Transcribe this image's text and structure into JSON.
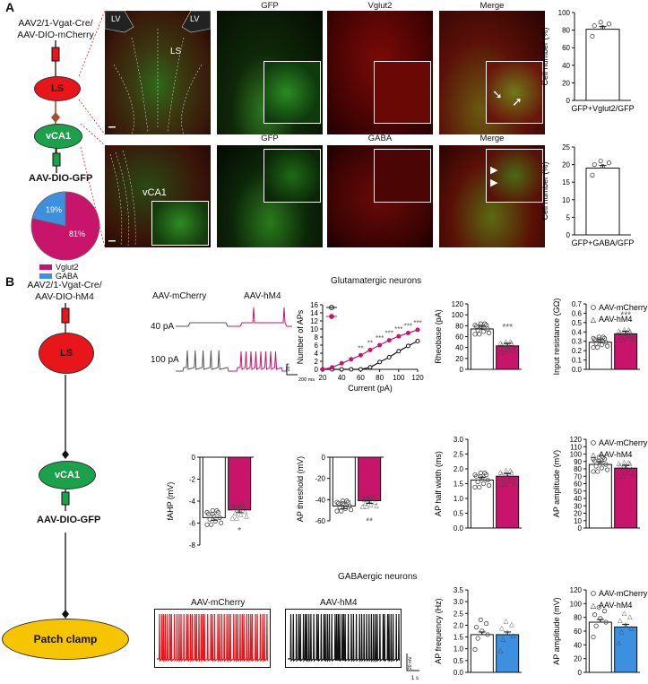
{
  "panel_a": {
    "letter": "A",
    "scheme": {
      "title_line1": "AAV2/1-Vgat-Cre/",
      "title_line2": "AAV-DIO-mCherry",
      "ls": "LS",
      "vca1": "vCA1",
      "vector": "AAV-DIO-GFP",
      "pie_vglut2_pct": "81%",
      "pie_gaba_pct": "19%",
      "legend_vglut2": "Vglut2",
      "legend_gaba": "GABA"
    },
    "micro_row1": {
      "labels": [
        "GFP",
        "Vglut2",
        "Merge"
      ],
      "lv_left": "LV",
      "lv_right": "LV",
      "ls": "LS"
    },
    "micro_row2": {
      "labels": [
        "GFP",
        "GABA",
        "Merge"
      ],
      "vca1": "vCA1"
    },
    "colors": {
      "ls_red": "#e8151b",
      "vca1_green": "#1aa14a",
      "vglut2_magenta": "#c8156b",
      "gaba_blue": "#3d8fe0",
      "mcherry_red": "#e8151b",
      "hm4_pink": "#c8156b"
    }
  },
  "panel_b": {
    "letter": "B",
    "scheme": {
      "title_line1": "AAV2/1-Vgat-Cre/",
      "title_line2": "AAV-DIO-hM4",
      "ls": "LS",
      "vca1": "vCA1",
      "vector": "AAV-DIO-GFP",
      "patch": "Patch clamp"
    },
    "glut_title": "Glutamatergic neurons",
    "gaba_title": "GABAergic neurons",
    "trace_labels": {
      "mcherry": "AAV-mCherry",
      "hm4": "AAV-hM4",
      "pa40": "40 pA",
      "pa100": "100 pA"
    },
    "scale_labels": {
      "mv20": "20 mV",
      "ms200": "200 ms",
      "s1": "1 s"
    }
  },
  "chart_data": [
    {
      "type": "bar",
      "ylabel": "Cell number (%)",
      "categories": [
        "GFP+Vglut2/GFP"
      ],
      "values": [
        81
      ],
      "ylim": [
        0,
        100
      ],
      "yticks": [
        "0",
        "20",
        "40",
        "60",
        "80",
        "100"
      ]
    },
    {
      "type": "bar",
      "ylabel": "Cell number (%)",
      "categories": [
        "GFP+GABA/GFP"
      ],
      "values": [
        19
      ],
      "ylim": [
        0,
        25
      ],
      "yticks": [
        "0",
        "5",
        "10",
        "15",
        "20",
        "25"
      ]
    },
    {
      "type": "line",
      "xlabel": "Current (pA)",
      "ylabel": "Number of APs",
      "x": [
        20,
        30,
        40,
        50,
        60,
        70,
        80,
        90,
        100,
        110,
        120
      ],
      "series": [
        {
          "values": [
            0,
            0,
            0,
            0,
            0,
            0.5,
            1.8,
            3.0,
            4.5,
            5.8,
            7.0
          ]
        },
        {
          "values": [
            0,
            0.5,
            1.5,
            2.5,
            3.5,
            4.8,
            6.0,
            7.2,
            8.2,
            9.0,
            9.8
          ]
        }
      ],
      "significance": [
        "**",
        "**",
        "***",
        "***",
        "***",
        "***",
        "***"
      ],
      "ylim": [
        0,
        16
      ],
      "xticks": [
        "20",
        "40",
        "60",
        "80",
        "100",
        "120"
      ],
      "yticks": [
        "0",
        "2",
        "4",
        "6",
        "8",
        "10",
        "12",
        "14",
        "16"
      ]
    },
    {
      "type": "bar",
      "ylabel": "Rheobase (pA)",
      "categories": [
        "AAV-mCherry",
        "AAV-hM4"
      ],
      "values": [
        74,
        43
      ],
      "significance": "***",
      "ylim": [
        0,
        120
      ],
      "yticks": [
        "0",
        "20",
        "40",
        "60",
        "80",
        "100",
        "120"
      ]
    },
    {
      "type": "bar",
      "ylabel": "Input resistance (GΩ)",
      "categories": [
        "AAV-mCherry",
        "AAV-hM4"
      ],
      "values": [
        0.29,
        0.38
      ],
      "significance": "***",
      "legend": [
        "AAV-mCherry",
        "AAV-hM4"
      ],
      "ylim": [
        0,
        0.7
      ],
      "yticks": [
        "0.0",
        "0.1",
        "0.2",
        "0.3",
        "0.4",
        "0.5",
        "0.6",
        "0.7"
      ]
    },
    {
      "type": "bar",
      "ylabel": "fAHP (mV)",
      "categories": [
        "AAV-mCherry",
        "AAV-hM4"
      ],
      "values": [
        -5.5,
        -4.8
      ],
      "significance": "*",
      "ylim": [
        -8,
        0
      ],
      "yticks": [
        "0",
        "-2",
        "-4",
        "-6",
        "-8"
      ]
    },
    {
      "type": "bar",
      "ylabel": "AP threshold (mV)",
      "categories": [
        "AAV-mCherry",
        "AAV-hM4"
      ],
      "values": [
        -46,
        -41
      ],
      "significance": "**",
      "ylim": [
        -60,
        0
      ],
      "yticks": [
        "0",
        "-20",
        "-40",
        "-60"
      ]
    },
    {
      "type": "bar",
      "ylabel": "AP half width (ms)",
      "categories": [
        "AAV-mCherry",
        "AAV-hM4"
      ],
      "values": [
        1.62,
        1.75
      ],
      "ylim": [
        0,
        3
      ],
      "yticks": [
        "0.0",
        "0.5",
        "1.0",
        "1.5",
        "2.0",
        "2.5",
        "3.0"
      ]
    },
    {
      "type": "bar",
      "ylabel": "AP amplitude (mV)",
      "categories": [
        "AAV-mCherry",
        "AAV-hM4"
      ],
      "values": [
        86,
        81
      ],
      "legend": [
        "AAV-mCherry",
        "AAV-hM4"
      ],
      "ylim": [
        0,
        120
      ],
      "yticks": [
        "0",
        "10",
        "20",
        "30",
        "40",
        "50",
        "60",
        "70",
        "80",
        "90",
        "100",
        "110",
        "120"
      ]
    },
    {
      "type": "bar",
      "ylabel": "AP frequency (Hz)",
      "categories": [
        "AAV-mCherry",
        "AAV-hM4"
      ],
      "values": [
        1.6,
        1.6
      ],
      "ylim": [
        0,
        3.5
      ],
      "yticks": [
        "0.0",
        "0.5",
        "1.0",
        "1.5",
        "2.0",
        "2.5",
        "3.0",
        "3.5"
      ]
    },
    {
      "type": "bar",
      "ylabel": "AP amplitude (mV)",
      "categories": [
        "AAV-mCherry",
        "AAV-hM4"
      ],
      "values": [
        73,
        66
      ],
      "legend": [
        "AAV-mCherry",
        "AAV-hM4"
      ],
      "ylim": [
        0,
        120
      ],
      "yticks": [
        "0",
        "20",
        "40",
        "60",
        "80",
        "100",
        "120"
      ]
    }
  ]
}
